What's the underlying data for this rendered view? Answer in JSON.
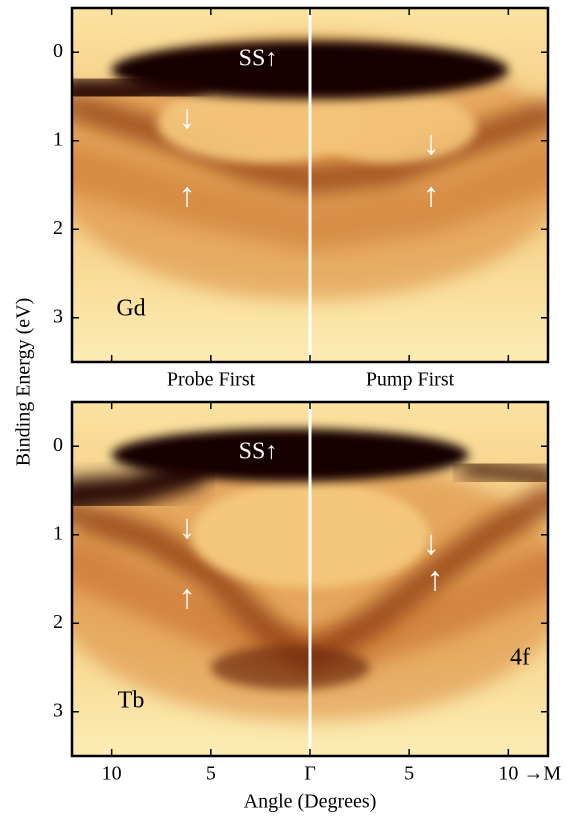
{
  "section_labels": [
    "Probe First",
    "Pump First"
  ],
  "chart_data": [
    {
      "type": "heatmap",
      "sample": "Gd",
      "ylabel": "Binding Energy (eV)",
      "xlim": [
        -12,
        12
      ],
      "xticks": [
        {
          "value": -10,
          "label": "10"
        },
        {
          "value": -5,
          "label": "5"
        },
        {
          "value": 0,
          "label": "Γ"
        },
        {
          "value": 5,
          "label": "5"
        },
        {
          "value": 10,
          "label": "10 →M"
        }
      ],
      "ylim": [
        -0.5,
        3.5
      ],
      "y_inverted": true,
      "yticks": [
        0,
        1,
        2,
        3
      ],
      "annotations": [
        "SS↑",
        "↓",
        "↑",
        "↓",
        "↑"
      ]
    },
    {
      "type": "heatmap",
      "sample": "Tb",
      "xlabel": "Angle (Degrees)",
      "xlim": [
        -12,
        12
      ],
      "xticks": [
        {
          "value": -10,
          "label": "10"
        },
        {
          "value": -5,
          "label": "5"
        },
        {
          "value": 0,
          "label": "Γ"
        },
        {
          "value": 5,
          "label": "5"
        },
        {
          "value": 10,
          "label": "10 →M"
        }
      ],
      "ylim": [
        -0.5,
        3.5
      ],
      "y_inverted": true,
      "yticks": [
        0,
        1,
        2,
        3
      ],
      "annotations": [
        "SS↑",
        "↓",
        "↑",
        "↓",
        "↑",
        "4f"
      ]
    }
  ]
}
